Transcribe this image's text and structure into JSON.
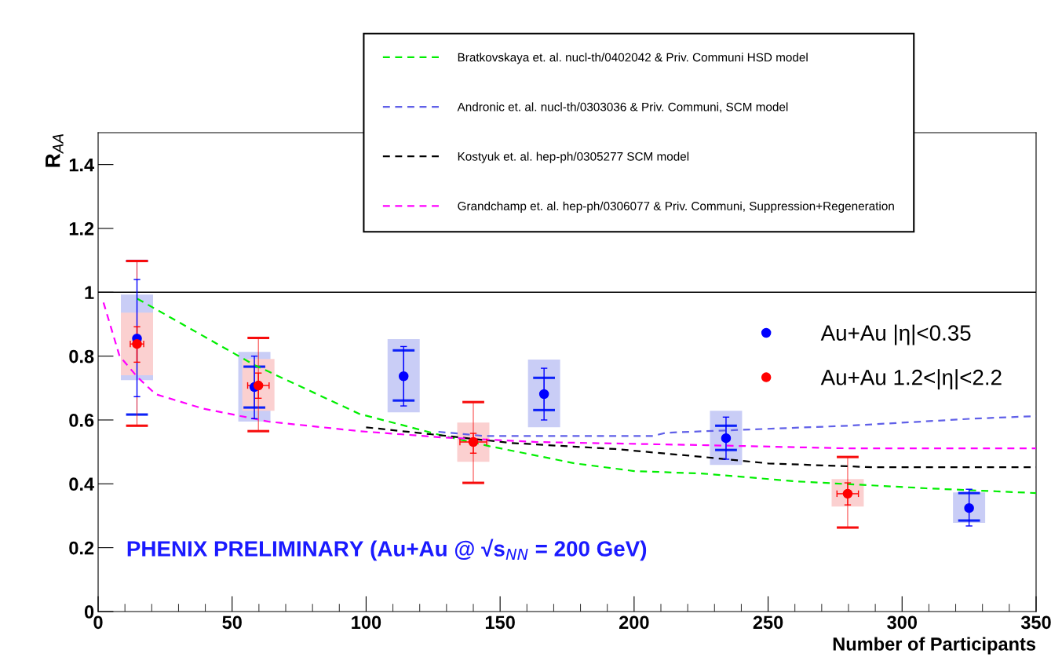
{
  "chart_data": {
    "type": "scatter",
    "xlabel": "Number of Participants",
    "ylabel": "R$_{AA}$",
    "xlim": [
      0,
      350
    ],
    "ylim": [
      0,
      1.5
    ],
    "xticks": [
      0,
      50,
      100,
      150,
      200,
      250,
      300,
      350
    ],
    "yticks": [
      0,
      0.2,
      0.4,
      0.6,
      0.8,
      1,
      1.2,
      1.4
    ],
    "grid": false,
    "legend": "right",
    "marker": "circle",
    "ref_lines": [
      {
        "axis": "y",
        "value": 1,
        "color": "#000000"
      }
    ],
    "annotations": [
      "PHENIX PRELIMINARY (Au+Au @ √s$_{NN}$ = 200 GeV)"
    ],
    "series": [
      {
        "type": "bar",
        "color": "#c9cdf6",
        "x": [
          14.5,
          58.3,
          114,
          166.4,
          234.3,
          325
        ],
        "base": [
          0.725,
          0.595,
          0.624,
          0.577,
          0.459,
          0.278
        ],
        "values": [
          0.268,
          0.218,
          0.229,
          0.212,
          0.17,
          0.095
        ],
        "errors": [
          [
            0.617,
            1.098
          ],
          [
            0.639,
            0.767
          ],
          [
            0.661,
            0.818
          ],
          [
            0.631,
            0.732
          ],
          [
            0.506,
            0.582
          ],
          [
            0.285,
            0.371
          ]
        ]
      },
      {
        "type": "bar",
        "color": "#fbd0d0",
        "x": [
          14.5,
          59.8,
          140,
          279.7
        ],
        "base": [
          0.74,
          0.629,
          0.469,
          0.329
        ],
        "values": [
          0.196,
          0.162,
          0.123,
          0.086
        ],
        "errors": [
          [
            0.582,
            1.098
          ],
          [
            0.565,
            0.857
          ],
          [
            0.403,
            0.656
          ],
          [
            0.263,
            0.484
          ]
        ]
      },
      {
        "type": "line",
        "marker": "none",
        "name": "Bratkovskaya et. al. nucl-th/0402042 & Priv. Communi HSD model",
        "color": "#00ee00",
        "line_style": "dashed",
        "x": [
          14.6,
          58.6,
          97.5,
          129,
          146,
          178,
          200,
          226,
          260,
          309,
          350
        ],
        "values": [
          0.98,
          0.771,
          0.619,
          0.55,
          0.518,
          0.464,
          0.44,
          0.432,
          0.408,
          0.386,
          0.371
        ]
      },
      {
        "type": "line",
        "marker": "none",
        "name": "Andronic et. al. nucl-th/0303036 & Priv. Communi, SCM model",
        "color": "#6060e8",
        "line_style": "dashed",
        "x": [
          127,
          144,
          183,
          207,
          212,
          221,
          280,
          326,
          350
        ],
        "values": [
          0.563,
          0.55,
          0.55,
          0.55,
          0.56,
          0.563,
          0.582,
          0.604,
          0.612
        ]
      },
      {
        "type": "line",
        "marker": "none",
        "name": "Kostyuk et. al. hep-ph/0305277 SCM model",
        "color": "#000000",
        "line_style": "dashed",
        "x": [
          100,
          124.5,
          154,
          193,
          226,
          250,
          289,
          350
        ],
        "values": [
          0.577,
          0.555,
          0.528,
          0.509,
          0.484,
          0.464,
          0.452,
          0.452
        ]
      },
      {
        "type": "line",
        "marker": "none",
        "name": "Grandchamp et. al. hep-ph/0306077 & Priv. Communi, Suppression+Regeneration",
        "color": "#ff00ff",
        "line_style": "dashed",
        "x": [
          2,
          8,
          14.6,
          21.4,
          39,
          63.5,
          97.5,
          129,
          163.5,
          227,
          280,
          350
        ],
        "values": [
          0.968,
          0.8,
          0.735,
          0.681,
          0.636,
          0.595,
          0.565,
          0.545,
          0.531,
          0.521,
          0.511,
          0.511
        ]
      },
      {
        "name": "Au+Au |η|<0.35",
        "color": "#0000ff",
        "x": [
          14.5,
          58.3,
          114,
          166.4,
          234.3,
          325
        ],
        "values": [
          0.855,
          0.703,
          0.737,
          0.681,
          0.543,
          0.324
        ],
        "errors": [
          [
            0.673,
            1.04
          ],
          [
            0.604,
            0.8
          ],
          [
            0.644,
            0.83
          ],
          [
            0.6,
            0.762
          ],
          [
            0.477,
            0.609
          ],
          [
            0.268,
            0.383
          ]
        ]
      },
      {
        "name": "Au+Au 1.2<|η|<2.2",
        "color": "#ff0000",
        "x": [
          14.5,
          59.8,
          140,
          279.7
        ],
        "values": [
          0.838,
          0.708,
          0.531,
          0.369
        ],
        "errors": [
          [
            0.781,
            0.892
          ],
          [
            0.668,
            0.747
          ],
          [
            0.496,
            0.558
          ],
          [
            0.334,
            0.403
          ]
        ],
        "xerrors": [
          2.5,
          4,
          5,
          4
        ]
      }
    ]
  }
}
